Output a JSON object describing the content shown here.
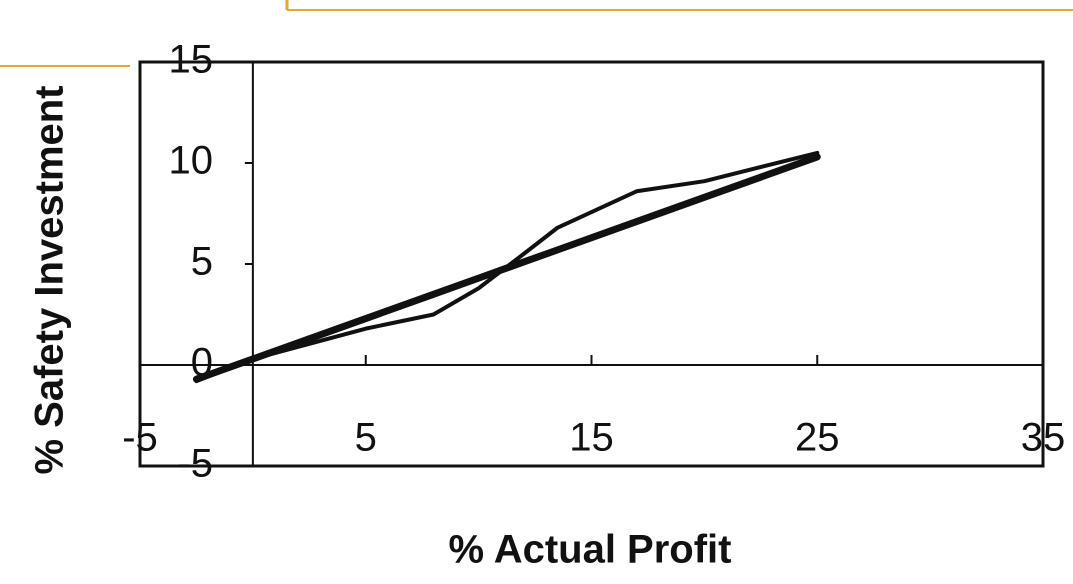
{
  "chart_data": {
    "type": "line",
    "x_label": "% Actual Profit",
    "y_label": "% Safety Investment",
    "x": [
      -2.5,
      0,
      5,
      8,
      10,
      12,
      13.5,
      17,
      20,
      25
    ],
    "series": [
      {
        "color": "#111111",
        "values": [
          -0.8,
          0.3,
          1.8,
          2.5,
          3.8,
          5.5,
          6.8,
          8.6,
          9.1,
          10.5
        ]
      },
      {
        "color": "#111111",
        "values": [
          -0.7,
          0.3,
          2.3,
          3.5,
          4.3,
          5.1,
          5.7,
          7.1,
          8.3,
          10.3
        ]
      }
    ],
    "xlim": [
      -5,
      35
    ],
    "xticks": [
      -5,
      5,
      15,
      25,
      35
    ],
    "ylim": [
      -5,
      15
    ],
    "yticks": [
      -5,
      0,
      5,
      10,
      15
    ],
    "grid": false
  }
}
